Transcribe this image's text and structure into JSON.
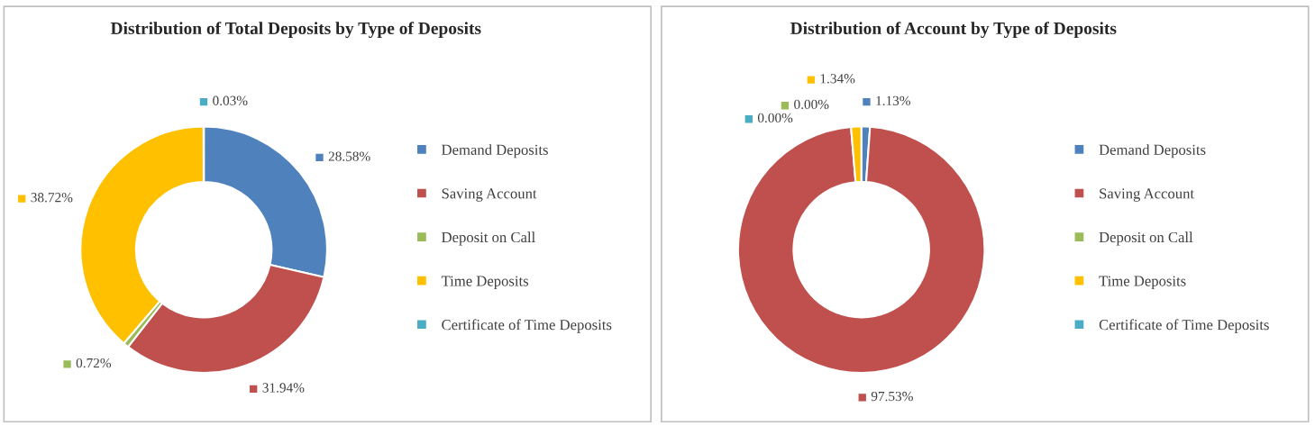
{
  "chart_data": [
    {
      "type": "donut",
      "title": "Distribution of Total Deposits by Type of Deposits",
      "categories": [
        "Demand Deposits",
        "Saving Account",
        "Deposit on Call",
        "Time Deposits",
        "Certificate of Time Deposits"
      ],
      "values": [
        28.58,
        31.94,
        0.72,
        38.72,
        0.03
      ],
      "value_labels": [
        "28.58%",
        "31.94%",
        "0.72%",
        "38.72%",
        "0.03%"
      ],
      "colors": [
        "#4f81bd",
        "#c0504d",
        "#9bbb59",
        "#ffc000",
        "#4bacc6"
      ],
      "legend": "right"
    },
    {
      "type": "donut",
      "title": "Distribution of Account by Type of Deposits",
      "categories": [
        "Demand Deposits",
        "Saving Account",
        "Deposit on Call",
        "Time Deposits",
        "Certificate of Time Deposits"
      ],
      "values": [
        1.13,
        97.53,
        0.0,
        1.34,
        0.0
      ],
      "value_labels": [
        "1.13%",
        "97.53%",
        "0.00%",
        "1.34%",
        "0.00%"
      ],
      "colors": [
        "#4f81bd",
        "#c0504d",
        "#9bbb59",
        "#ffc000",
        "#4bacc6"
      ],
      "legend": "right"
    }
  ]
}
